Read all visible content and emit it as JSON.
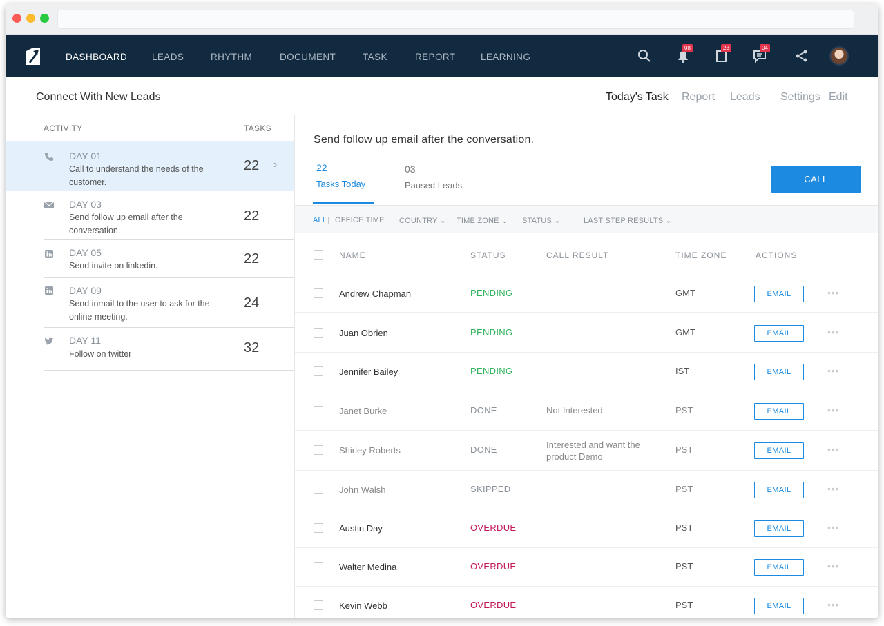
{
  "nav": {
    "items": [
      "DASHBOARD",
      "LEADS",
      "RHYTHM",
      "DOCUMENT",
      "TASK",
      "REPORT",
      "LEARNING"
    ],
    "active": "DASHBOARD",
    "badges": {
      "notifications": "08",
      "clipboard": "23",
      "messages": "04"
    }
  },
  "subheader": {
    "title": "Connect With New Leads",
    "tabs": [
      "Today's Task",
      "Report",
      "Leads",
      "Settings",
      "Edit"
    ]
  },
  "activity": {
    "header_activity": "ACTIVITY",
    "header_tasks": "TASKS",
    "items": [
      {
        "icon": "phone-icon",
        "day": "DAY 01",
        "desc": "Call to understand the needs of the customer.",
        "count": "22"
      },
      {
        "icon": "mail-icon",
        "day": "DAY 03",
        "desc": "Send follow up email after the conversation.",
        "count": "22"
      },
      {
        "icon": "linkedin-icon",
        "day": "DAY 05",
        "desc": "Send invite on linkedin.",
        "count": "22"
      },
      {
        "icon": "linkedin-icon",
        "day": "DAY 09",
        "desc": "Send inmail to the user to ask for the online meeting.",
        "count": "24"
      },
      {
        "icon": "twitter-icon",
        "day": "DAY 11",
        "desc": "Follow on twitter",
        "count": "32"
      }
    ]
  },
  "main": {
    "title": "Send follow up email after the conversation.",
    "tabs": [
      {
        "num": "22",
        "label": "Tasks Today"
      },
      {
        "num": "03",
        "label": "Paused Leads"
      }
    ],
    "call_label": "CALL",
    "filters": {
      "all": "ALL",
      "office": "OFFICE TIME",
      "country": "COUNTRY",
      "timezone": "TIME ZONE",
      "status": "STATUS",
      "last": "LAST STEP RESULTS"
    },
    "columns": {
      "name": "NAME",
      "status": "STATUS",
      "result": "CALL RESULT",
      "tz": "TIME ZONE",
      "actions": "ACTIONS"
    },
    "email_label": "EMAIL",
    "more": "•••",
    "rows": [
      {
        "name": "Andrew Chapman",
        "status": "PENDING",
        "result": "",
        "tz": "GMT"
      },
      {
        "name": "Juan Obrien",
        "status": "PENDING",
        "result": "",
        "tz": "GMT"
      },
      {
        "name": "Jennifer Bailey",
        "status": "PENDING",
        "result": "",
        "tz": "IST"
      },
      {
        "name": "Janet Burke",
        "status": "DONE",
        "result": "Not Interested",
        "tz": "PST"
      },
      {
        "name": "Shirley Roberts",
        "status": "DONE",
        "result": "Interested and want the product Demo",
        "tz": "PST"
      },
      {
        "name": "John Walsh",
        "status": "SKIPPED",
        "result": "",
        "tz": "PST"
      },
      {
        "name": "Austin Day",
        "status": "OVERDUE",
        "result": "",
        "tz": "PST"
      },
      {
        "name": "Walter Medina",
        "status": "OVERDUE",
        "result": "",
        "tz": "PST"
      },
      {
        "name": "Kevin Webb",
        "status": "OVERDUE",
        "result": "",
        "tz": "PST"
      }
    ]
  },
  "colors": {
    "navy": "#122a40",
    "accent": "#1b8ae0",
    "pending": "#2db35a",
    "overdue": "#c2185b",
    "muted": "#8a9199"
  }
}
